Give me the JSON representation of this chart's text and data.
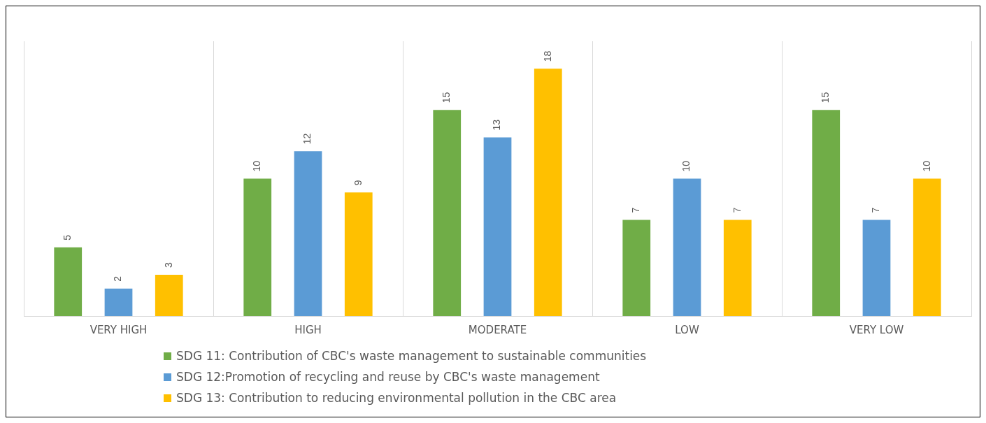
{
  "chart_data": {
    "type": "bar",
    "categories": [
      "VERY HIGH",
      "HIGH",
      "MODERATE",
      "LOW",
      "VERY LOW"
    ],
    "series": [
      {
        "name": "SDG 11: Contribution of CBC's waste management to sustainable communities",
        "color": "#70ad47",
        "values": [
          5,
          10,
          15,
          7,
          15
        ]
      },
      {
        "name": "SDG 12:Promotion of recycling and reuse by CBC's waste management",
        "color": "#5b9bd5",
        "values": [
          2,
          12,
          13,
          10,
          7
        ]
      },
      {
        "name": "SDG 13: Contribution to reducing environmental pollution in the CBC area",
        "color": "#ffc000",
        "values": [
          3,
          9,
          18,
          7,
          10
        ]
      }
    ],
    "ylim": [
      0,
      20
    ],
    "data_labels": true,
    "grid": "x",
    "legend": "bottom left"
  }
}
